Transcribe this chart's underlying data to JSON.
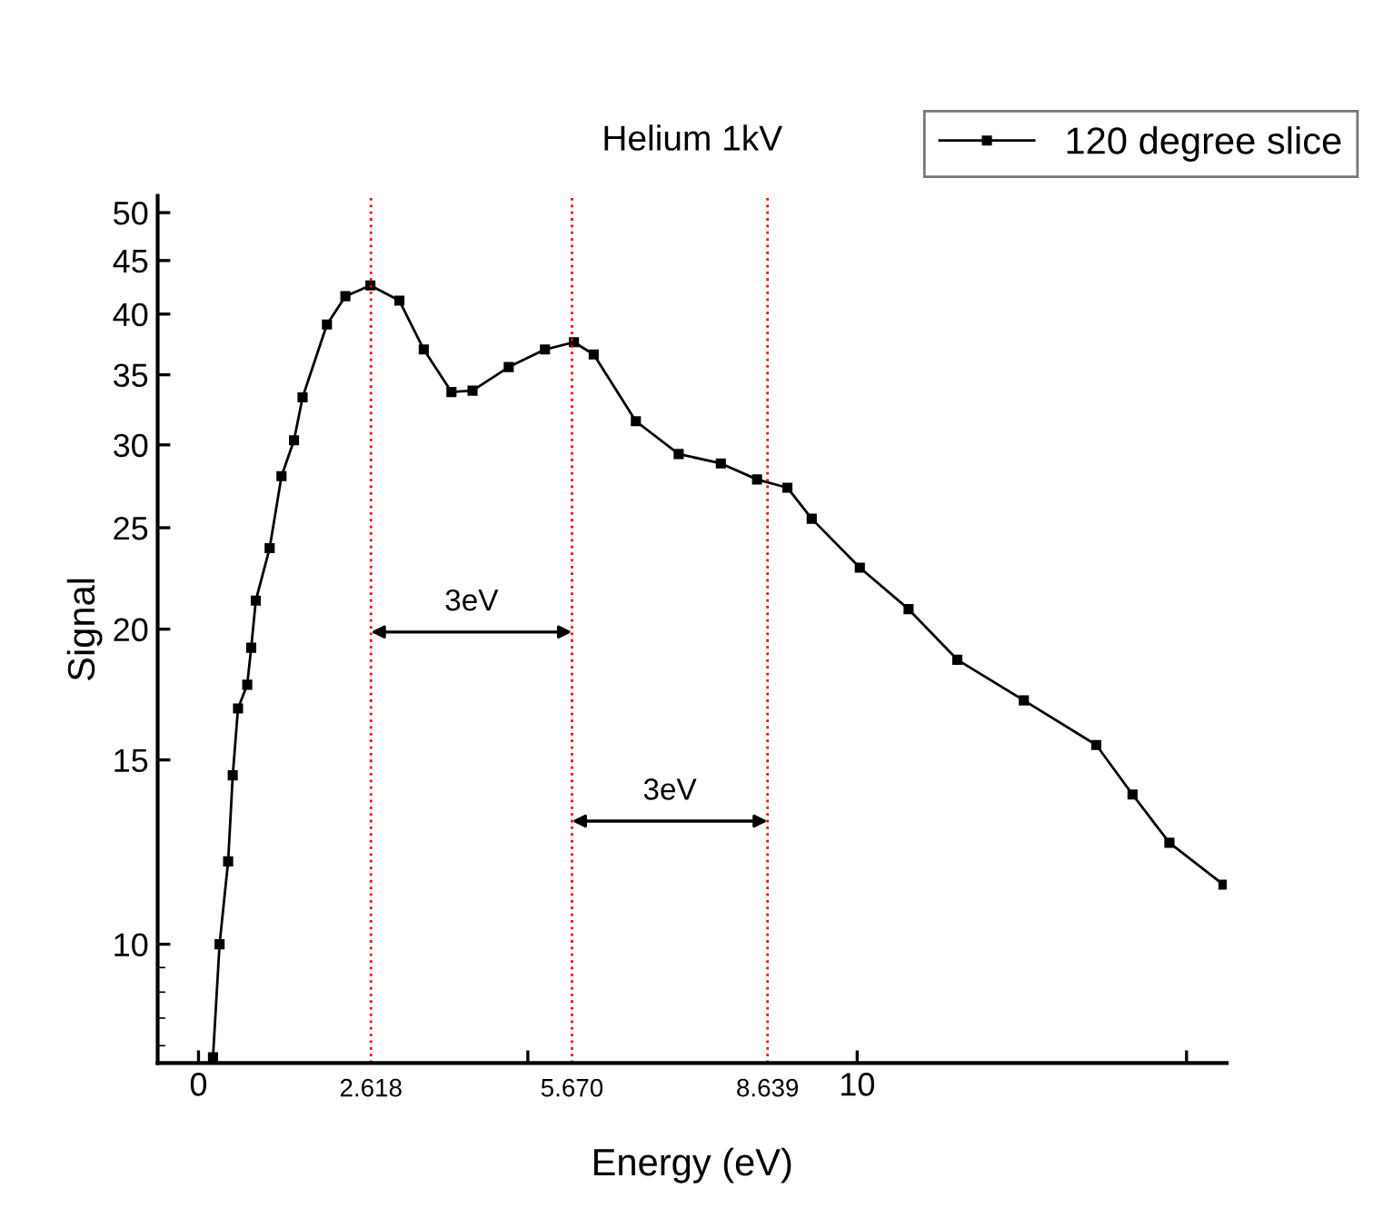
{
  "chart_data": {
    "type": "line",
    "title": "Helium 1kV",
    "xlabel": "Energy (eV)",
    "ylabel": "Signal",
    "log": "y",
    "legend": "top right",
    "marker": "square",
    "line_style": "solid",
    "grid": false,
    "series": [
      {
        "name": "120 degree slice",
        "color": "#000000",
        "x": [
          0.22,
          0.32,
          0.45,
          0.52,
          0.6,
          0.74,
          0.8,
          0.87,
          1.08,
          1.26,
          1.45,
          1.58,
          1.95,
          2.23,
          2.61,
          3.05,
          3.42,
          3.84,
          4.16,
          4.71,
          5.26,
          5.7,
          6.0,
          6.64,
          7.29,
          7.93,
          8.48,
          8.94,
          9.31,
          10.04,
          10.78,
          11.52,
          12.53,
          13.63,
          14.18,
          14.74,
          15.56
        ],
        "values": [
          7.8,
          10,
          12.0,
          14.5,
          16.8,
          17.7,
          19.2,
          21.3,
          23.9,
          28.0,
          30.3,
          33.3,
          39.1,
          41.6,
          42.6,
          41.2,
          37.0,
          33.7,
          33.8,
          35.6,
          37.0,
          37.6,
          36.6,
          31.6,
          29.4,
          28.8,
          27.8,
          27.3,
          25.5,
          22.9,
          20.9,
          18.7,
          17.1,
          15.5,
          13.9,
          12.5,
          11.4
        ]
      }
    ],
    "xlim": [
      -0.62,
      15.61
    ],
    "xticks": [
      0,
      {
        "value": 5,
        "label": null
      },
      10,
      {
        "value": 15,
        "label": null
      }
    ],
    "ylim": [
      7.7,
      51.9
    ],
    "yticks": [
      10,
      15,
      20,
      25,
      30,
      35,
      40,
      45,
      50
    ],
    "ref_lines": [
      {
        "axis": "x",
        "value": 2.618,
        "label": "2.618",
        "color": "#ff0000",
        "line_style": "dotted"
      },
      {
        "axis": "x",
        "value": 5.67,
        "label": "5.670",
        "color": "#ff0000",
        "line_style": "dotted"
      },
      {
        "axis": "x",
        "value": 8.639,
        "label": "8.639",
        "color": "#ff0000",
        "line_style": "dotted"
      }
    ],
    "annotations": [
      "3eV",
      "3eV"
    ]
  }
}
